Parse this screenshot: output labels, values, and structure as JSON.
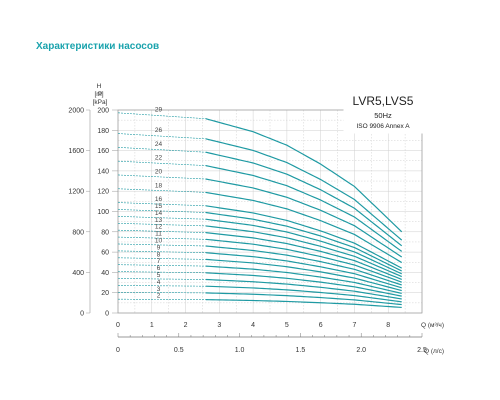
{
  "page": {
    "heading": "Характеристики насосов"
  },
  "legend_box": {
    "model": "LVR5,LVS5",
    "frequency": "50Hz",
    "standard": "ISO 9906 Annex A"
  },
  "axes": {
    "p_label": "P",
    "p_unit": "[kPa]",
    "h_label": "H",
    "h_unit": "[m]",
    "q_m3h_label": "Q (м³/ч)",
    "q_ls_label": "Q (л/с)",
    "p_ticks": [
      "0",
      "400",
      "800",
      "1200",
      "1600",
      "2000"
    ],
    "h_ticks": [
      "0",
      "20",
      "40",
      "60",
      "80",
      "100",
      "120",
      "140",
      "160",
      "180",
      "200"
    ],
    "q_m3h_ticks": [
      "0",
      "1",
      "2",
      "3",
      "4",
      "5",
      "6",
      "7",
      "8"
    ],
    "q_ls_ticks": [
      "0",
      "0.5",
      "1.0",
      "1.5",
      "2.0",
      "2.5"
    ]
  },
  "colors": {
    "curve": "#1f9aa3",
    "grid": "#cfcfcf",
    "heading": "#1aa3ad"
  },
  "chart_data": {
    "type": "line",
    "title": "LVR5,LVS5",
    "subtitle": "50Hz ISO 9906 Annex A",
    "xlabel": "Q (м³/ч)",
    "ylabel": "H [m]",
    "secondary_xlabel": "Q (л/с)",
    "secondary_ylabel": "P [kPa]",
    "xlim": [
      0,
      9
    ],
    "ylim": [
      0,
      200
    ],
    "grid": true,
    "x": [
      0,
      2.6,
      4,
      5,
      6,
      7,
      8.4
    ],
    "series": [
      {
        "name": "2",
        "values": [
          13.6,
          13.2,
          12.3,
          11.4,
          10.1,
          8.6,
          5.5
        ]
      },
      {
        "name": "3",
        "values": [
          20.4,
          19.8,
          18.5,
          17.1,
          15.2,
          12.9,
          8.3
        ]
      },
      {
        "name": "4",
        "values": [
          27.2,
          26.4,
          24.7,
          22.8,
          20.2,
          17.2,
          11.0
        ]
      },
      {
        "name": "5",
        "values": [
          34.0,
          33.0,
          30.8,
          28.5,
          25.3,
          21.5,
          13.8
        ]
      },
      {
        "name": "6",
        "values": [
          40.8,
          39.6,
          37.0,
          34.2,
          30.4,
          25.8,
          16.6
        ]
      },
      {
        "name": "7",
        "values": [
          47.6,
          46.2,
          43.2,
          39.9,
          35.4,
          30.1,
          19.3
        ]
      },
      {
        "name": "8",
        "values": [
          54.4,
          52.8,
          49.3,
          45.6,
          40.5,
          34.4,
          22.1
        ]
      },
      {
        "name": "9",
        "values": [
          61.2,
          59.4,
          55.5,
          51.3,
          45.5,
          38.7,
          24.8
        ]
      },
      {
        "name": "10",
        "values": [
          68.0,
          66.0,
          61.6,
          57.0,
          50.6,
          43.0,
          27.6
        ]
      },
      {
        "name": "11",
        "values": [
          74.8,
          72.6,
          67.8,
          62.7,
          55.6,
          47.3,
          30.4
        ]
      },
      {
        "name": "12",
        "values": [
          81.6,
          79.2,
          74.0,
          68.4,
          60.7,
          51.6,
          33.1
        ]
      },
      {
        "name": "13",
        "values": [
          88.4,
          85.8,
          80.1,
          74.1,
          65.7,
          55.9,
          35.9
        ]
      },
      {
        "name": "14",
        "values": [
          95.2,
          92.4,
          86.3,
          79.8,
          70.8,
          60.2,
          38.6
        ]
      },
      {
        "name": "15",
        "values": [
          102.0,
          99.0,
          92.4,
          85.5,
          75.9,
          64.5,
          41.4
        ]
      },
      {
        "name": "16",
        "values": [
          108.8,
          105.6,
          98.6,
          91.2,
          80.9,
          68.8,
          44.2
        ]
      },
      {
        "name": "18",
        "values": [
          122.4,
          118.8,
          110.9,
          102.6,
          91.0,
          77.4,
          49.7
        ]
      },
      {
        "name": "20",
        "values": [
          136.0,
          132.0,
          123.2,
          114.0,
          101.2,
          86.0,
          55.2
        ]
      },
      {
        "name": "22",
        "values": [
          149.6,
          145.2,
          135.5,
          125.4,
          111.3,
          94.6,
          60.7
        ]
      },
      {
        "name": "24",
        "values": [
          163.2,
          158.4,
          147.8,
          136.8,
          121.4,
          103.2,
          66.2
        ]
      },
      {
        "name": "26",
        "values": [
          176.8,
          171.6,
          160.2,
          148.2,
          131.5,
          111.8,
          71.8
        ]
      },
      {
        "name": "29",
        "values": [
          197.2,
          191.4,
          178.6,
          165.3,
          146.7,
          124.7,
          80.0
        ]
      }
    ]
  }
}
